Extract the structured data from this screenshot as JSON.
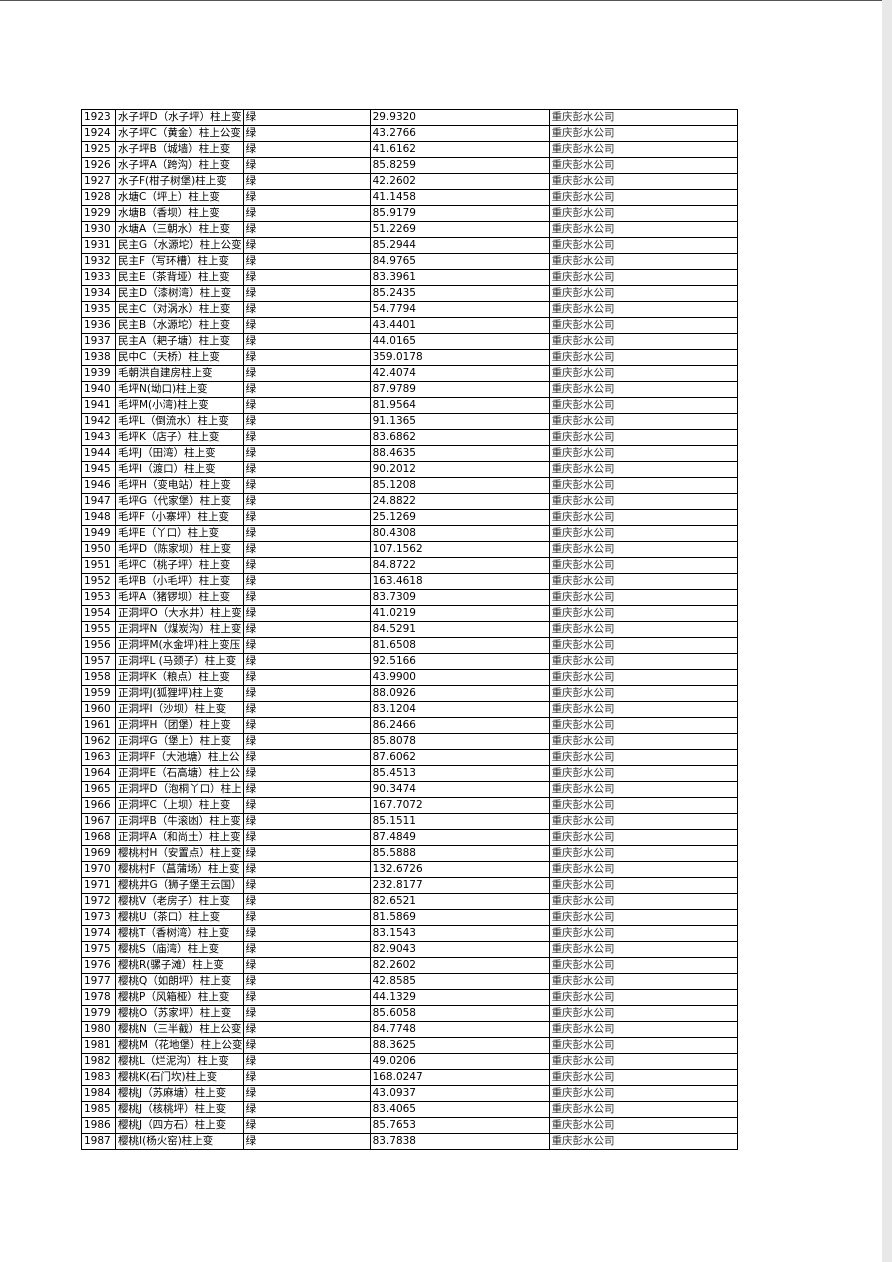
{
  "table": {
    "rows": [
      [
        "1923",
        "水子坪D（水子坪）柱上变",
        "绿",
        "29.9320",
        "重庆彭水公司"
      ],
      [
        "1924",
        "水子坪C（黄金）柱上公变",
        "绿",
        "43.2766",
        "重庆彭水公司"
      ],
      [
        "1925",
        "水子坪B（城墙）柱上变",
        "绿",
        "41.6162",
        "重庆彭水公司"
      ],
      [
        "1926",
        "水子坪A（跨沟）柱上变",
        "绿",
        "85.8259",
        "重庆彭水公司"
      ],
      [
        "1927",
        "水子F(柑子树堡)柱上变",
        "绿",
        "42.2602",
        "重庆彭水公司"
      ],
      [
        "1928",
        "水塘C（坪上）柱上变",
        "绿",
        "41.1458",
        "重庆彭水公司"
      ],
      [
        "1929",
        "水塘B（香坝）柱上变",
        "绿",
        "85.9179",
        "重庆彭水公司"
      ],
      [
        "1930",
        "水塘A（三朝水）柱上变",
        "绿",
        "51.2269",
        "重庆彭水公司"
      ],
      [
        "1931",
        "民主G（水源坨）柱上公变",
        "绿",
        "85.2944",
        "重庆彭水公司"
      ],
      [
        "1932",
        "民主F（写环槽）柱上变",
        "绿",
        "84.9765",
        "重庆彭水公司"
      ],
      [
        "1933",
        "民主E（茶背垭）柱上变",
        "绿",
        "83.3961",
        "重庆彭水公司"
      ],
      [
        "1934",
        "民主D（漆树湾）柱上变",
        "绿",
        "85.2435",
        "重庆彭水公司"
      ],
      [
        "1935",
        "民主C（对涡水）柱上变",
        "绿",
        "54.7794",
        "重庆彭水公司"
      ],
      [
        "1936",
        "民主B（水源坨）柱上变",
        "绿",
        "43.4401",
        "重庆彭水公司"
      ],
      [
        "1937",
        "民主A（耙子塘）柱上变",
        "绿",
        "44.0165",
        "重庆彭水公司"
      ],
      [
        "1938",
        "民中C（天桥）柱上变",
        "绿",
        "359.0178",
        "重庆彭水公司"
      ],
      [
        "1939",
        "毛朝洪自建房柱上变",
        "绿",
        "42.4074",
        "重庆彭水公司"
      ],
      [
        "1940",
        "毛坪N(坳口)柱上变",
        "绿",
        "87.9789",
        "重庆彭水公司"
      ],
      [
        "1941",
        "毛坪M(小湾)柱上变",
        "绿",
        "81.9564",
        "重庆彭水公司"
      ],
      [
        "1942",
        "毛坪L（倒流水）柱上变",
        "绿",
        "91.1365",
        "重庆彭水公司"
      ],
      [
        "1943",
        "毛坪K（店子）柱上变",
        "绿",
        "83.6862",
        "重庆彭水公司"
      ],
      [
        "1944",
        "毛坪J（田湾）柱上变",
        "绿",
        "88.4635",
        "重庆彭水公司"
      ],
      [
        "1945",
        "毛坪I（渡口）柱上变",
        "绿",
        "90.2012",
        "重庆彭水公司"
      ],
      [
        "1946",
        "毛坪H（变电站）柱上变",
        "绿",
        "85.1208",
        "重庆彭水公司"
      ],
      [
        "1947",
        "毛坪G（代家堡）柱上变",
        "绿",
        "24.8822",
        "重庆彭水公司"
      ],
      [
        "1948",
        "毛坪F（小寨坪）柱上变",
        "绿",
        "25.1269",
        "重庆彭水公司"
      ],
      [
        "1949",
        "毛坪E（丫口）柱上变",
        "绿",
        "80.4308",
        "重庆彭水公司"
      ],
      [
        "1950",
        "毛坪D（陈家坝）柱上变",
        "绿",
        "107.1562",
        "重庆彭水公司"
      ],
      [
        "1951",
        "毛坪C（桃子坪）柱上变",
        "绿",
        "84.8722",
        "重庆彭水公司"
      ],
      [
        "1952",
        "毛坪B（小毛坪）柱上变",
        "绿",
        "163.4618",
        "重庆彭水公司"
      ],
      [
        "1953",
        "毛坪A（猪锣坝）柱上变",
        "绿",
        "83.7309",
        "重庆彭水公司"
      ],
      [
        "1954",
        "正洞坪O（大水井）柱上变",
        "绿",
        "41.0219",
        "重庆彭水公司"
      ],
      [
        "1955",
        "正洞坪N（煤炭沟）柱上变",
        "绿",
        "84.5291",
        "重庆彭水公司"
      ],
      [
        "1956",
        "正洞坪M(水金坪)柱上变压",
        "绿",
        "81.6508",
        "重庆彭水公司"
      ],
      [
        "1957",
        "正洞坪L (马颈子）柱上变",
        "绿",
        "92.5166",
        "重庆彭水公司"
      ],
      [
        "1958",
        "正洞坪K（粮点）柱上变",
        "绿",
        "43.9900",
        "重庆彭水公司"
      ],
      [
        "1959",
        "正洞坪J(狐狸坪)柱上变",
        "绿",
        "88.0926",
        "重庆彭水公司"
      ],
      [
        "1960",
        "正洞坪I（沙坝）柱上变",
        "绿",
        "83.1204",
        "重庆彭水公司"
      ],
      [
        "1961",
        "正洞坪H（团堡）柱上变",
        "绿",
        "86.2466",
        "重庆彭水公司"
      ],
      [
        "1962",
        "正洞坪G（堡上）柱上变",
        "绿",
        "85.8078",
        "重庆彭水公司"
      ],
      [
        "1963",
        "正洞坪F（大池塘）柱上公",
        "绿",
        "87.6062",
        "重庆彭水公司"
      ],
      [
        "1964",
        "正洞坪E（石高塘）柱上公",
        "绿",
        "85.4513",
        "重庆彭水公司"
      ],
      [
        "1965",
        "正洞坪D（泡桐丫口）柱上",
        "绿",
        "90.3474",
        "重庆彭水公司"
      ],
      [
        "1966",
        "正洞坪C（上坝）柱上变",
        "绿",
        "167.7072",
        "重庆彭水公司"
      ],
      [
        "1967",
        "正洞坪B（牛滚凼）柱上变",
        "绿",
        "85.1511",
        "重庆彭水公司"
      ],
      [
        "1968",
        "正洞坪A（和尚土）柱上变",
        "绿",
        "87.4849",
        "重庆彭水公司"
      ],
      [
        "1969",
        "樱桃村H（安置点）柱上变",
        "绿",
        "85.5888",
        "重庆彭水公司"
      ],
      [
        "1970",
        "樱桃村F（菖蒲场）柱上变",
        "绿",
        "132.6726",
        "重庆彭水公司"
      ],
      [
        "1971",
        "樱桃井G（狮子堡王云国）",
        "绿",
        "232.8177",
        "重庆彭水公司"
      ],
      [
        "1972",
        "樱桃V（老房子）柱上变",
        "绿",
        "82.6521",
        "重庆彭水公司"
      ],
      [
        "1973",
        "樱桃U（茶口）柱上变",
        "绿",
        "81.5869",
        "重庆彭水公司"
      ],
      [
        "1974",
        "樱桃T（香树湾）柱上变",
        "绿",
        "83.1543",
        "重庆彭水公司"
      ],
      [
        "1975",
        "樱桃S（庙湾）柱上变",
        "绿",
        "82.9043",
        "重庆彭水公司"
      ],
      [
        "1976",
        "樱桃R(骡子滩）柱上变",
        "绿",
        "82.2602",
        "重庆彭水公司"
      ],
      [
        "1977",
        "樱桃Q（如朗坪）柱上变",
        "绿",
        "42.8585",
        "重庆彭水公司"
      ],
      [
        "1978",
        "樱桃P（风箱桠）柱上变",
        "绿",
        "44.1329",
        "重庆彭水公司"
      ],
      [
        "1979",
        "樱桃O（苏家坪）柱上变",
        "绿",
        "85.6058",
        "重庆彭水公司"
      ],
      [
        "1980",
        "樱桃N（三半截）柱上公变",
        "绿",
        "84.7748",
        "重庆彭水公司"
      ],
      [
        "1981",
        "樱桃M（花地堡）柱上公变",
        "绿",
        "88.3625",
        "重庆彭水公司"
      ],
      [
        "1982",
        "樱桃L（烂泥沟）柱上变",
        "绿",
        "49.0206",
        "重庆彭水公司"
      ],
      [
        "1983",
        "樱桃K(石门坎)柱上变",
        "绿",
        "168.0247",
        "重庆彭水公司"
      ],
      [
        "1984",
        "樱桃J（苏麻塘）柱上变",
        "绿",
        "43.0937",
        "重庆彭水公司"
      ],
      [
        "1985",
        "樱桃J（核桃坪）柱上变",
        "绿",
        "83.4065",
        "重庆彭水公司"
      ],
      [
        "1986",
        "樱桃J（四方石）柱上变",
        "绿",
        "85.7653",
        "重庆彭水公司"
      ],
      [
        "1987",
        "樱桃I(杨火窑)柱上变",
        "绿",
        "83.7838",
        "重庆彭水公司"
      ]
    ]
  }
}
